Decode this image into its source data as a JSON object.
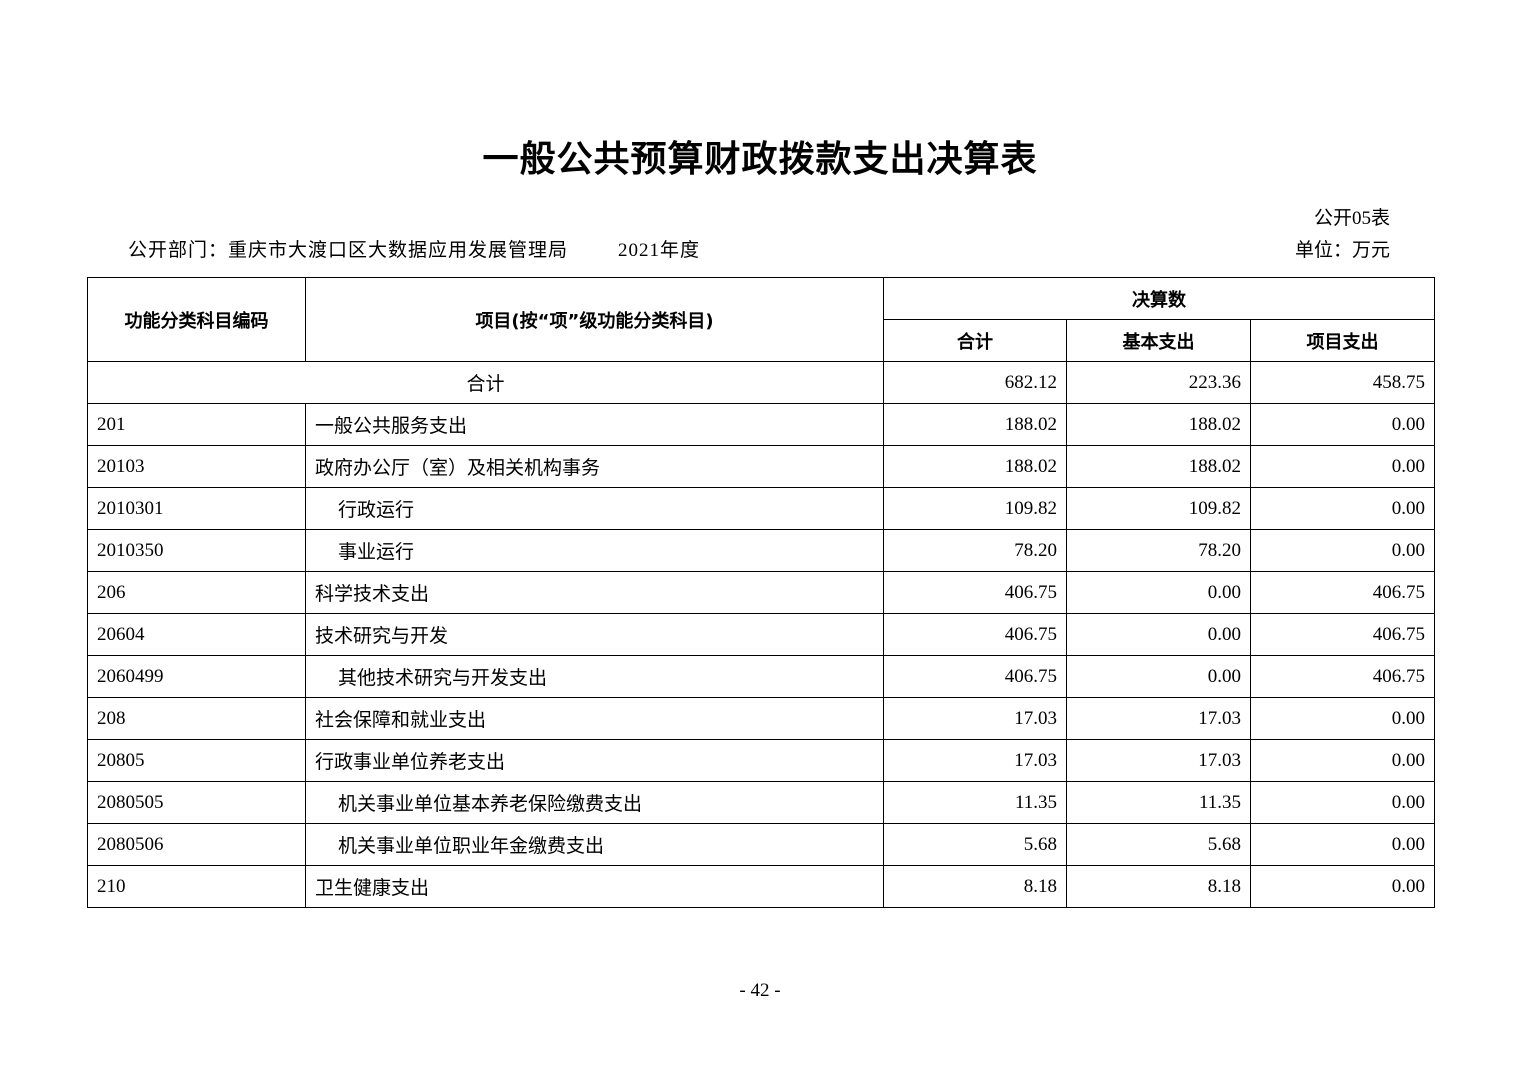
{
  "title": "一般公共预算财政拨款支出决算表",
  "table_no": "公开05表",
  "department": "公开部门：重庆市大渡口区大数据应用发展管理局",
  "year": "2021年度",
  "unit": "单位：万元",
  "headers": {
    "code": "功能分类科目编码",
    "item": "项目(按“项”级功能分类科目)",
    "group": "决算数",
    "total": "合计",
    "basic": "基本支出",
    "project": "项目支出"
  },
  "total_row": {
    "label": "合计",
    "total": "682.12",
    "basic": "223.36",
    "project": "458.75"
  },
  "rows": [
    {
      "code": "201",
      "name": "一般公共服务支出",
      "total": "188.02",
      "basic": "188.02",
      "project": "0.00",
      "indent": false
    },
    {
      "code": "20103",
      "name": "政府办公厅（室）及相关机构事务",
      "total": "188.02",
      "basic": "188.02",
      "project": "0.00",
      "indent": false
    },
    {
      "code": "2010301",
      "name": "行政运行",
      "total": "109.82",
      "basic": "109.82",
      "project": "0.00",
      "indent": true
    },
    {
      "code": "2010350",
      "name": "事业运行",
      "total": "78.20",
      "basic": "78.20",
      "project": "0.00",
      "indent": true
    },
    {
      "code": "206",
      "name": "科学技术支出",
      "total": "406.75",
      "basic": "0.00",
      "project": "406.75",
      "indent": false
    },
    {
      "code": "20604",
      "name": "技术研究与开发",
      "total": "406.75",
      "basic": "0.00",
      "project": "406.75",
      "indent": false
    },
    {
      "code": "2060499",
      "name": "其他技术研究与开发支出",
      "total": "406.75",
      "basic": "0.00",
      "project": "406.75",
      "indent": true
    },
    {
      "code": "208",
      "name": "社会保障和就业支出",
      "total": "17.03",
      "basic": "17.03",
      "project": "0.00",
      "indent": false
    },
    {
      "code": "20805",
      "name": "行政事业单位养老支出",
      "total": "17.03",
      "basic": "17.03",
      "project": "0.00",
      "indent": false
    },
    {
      "code": "2080505",
      "name": "机关事业单位基本养老保险缴费支出",
      "total": "11.35",
      "basic": "11.35",
      "project": "0.00",
      "indent": true
    },
    {
      "code": "2080506",
      "name": "机关事业单位职业年金缴费支出",
      "total": "5.68",
      "basic": "5.68",
      "project": "0.00",
      "indent": true
    },
    {
      "code": "210",
      "name": "卫生健康支出",
      "total": "8.18",
      "basic": "8.18",
      "project": "0.00",
      "indent": false
    }
  ],
  "page_number": "- 42 -"
}
